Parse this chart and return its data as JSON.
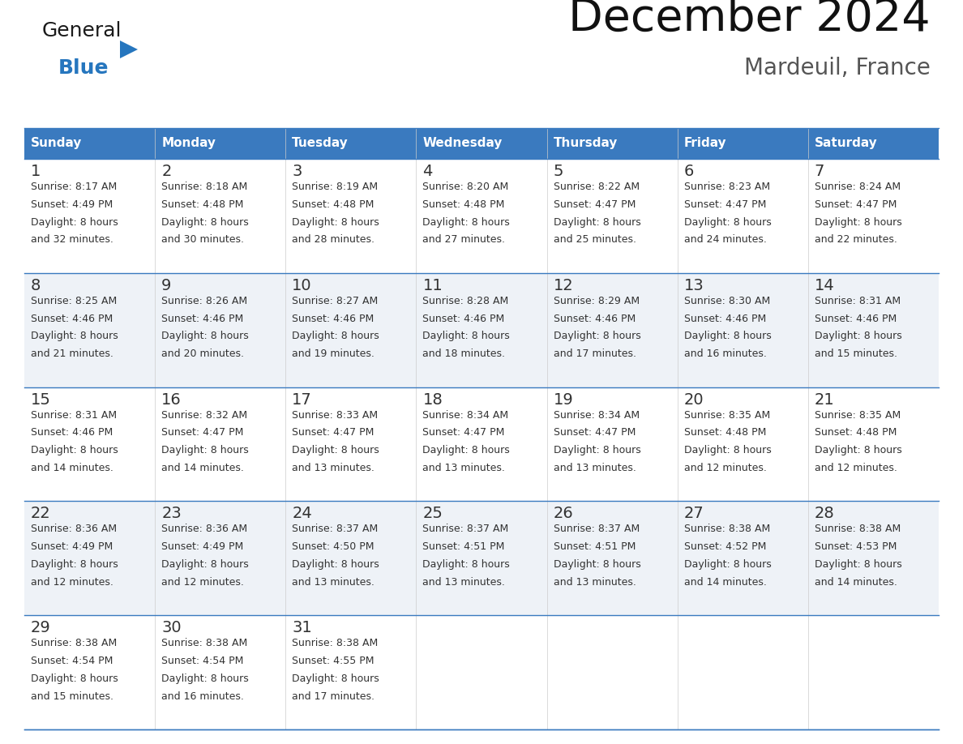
{
  "title": "December 2024",
  "subtitle": "Mardeuil, France",
  "header_color": "#3a7abf",
  "header_text_color": "#ffffff",
  "day_names": [
    "Sunday",
    "Monday",
    "Tuesday",
    "Wednesday",
    "Thursday",
    "Friday",
    "Saturday"
  ],
  "bg_color": "#ffffff",
  "row_colors": [
    "#ffffff",
    "#eef2f7",
    "#ffffff",
    "#eef2f7",
    "#ffffff"
  ],
  "border_color": "#3a7abf",
  "text_color": "#333333",
  "number_color": "#333333",
  "days": [
    {
      "day": 1,
      "col": 0,
      "row": 0,
      "sunrise": "8:17 AM",
      "sunset": "4:49 PM",
      "daylight": "8 hours",
      "daylight2": "and 32 minutes."
    },
    {
      "day": 2,
      "col": 1,
      "row": 0,
      "sunrise": "8:18 AM",
      "sunset": "4:48 PM",
      "daylight": "8 hours",
      "daylight2": "and 30 minutes."
    },
    {
      "day": 3,
      "col": 2,
      "row": 0,
      "sunrise": "8:19 AM",
      "sunset": "4:48 PM",
      "daylight": "8 hours",
      "daylight2": "and 28 minutes."
    },
    {
      "day": 4,
      "col": 3,
      "row": 0,
      "sunrise": "8:20 AM",
      "sunset": "4:48 PM",
      "daylight": "8 hours",
      "daylight2": "and 27 minutes."
    },
    {
      "day": 5,
      "col": 4,
      "row": 0,
      "sunrise": "8:22 AM",
      "sunset": "4:47 PM",
      "daylight": "8 hours",
      "daylight2": "and 25 minutes."
    },
    {
      "day": 6,
      "col": 5,
      "row": 0,
      "sunrise": "8:23 AM",
      "sunset": "4:47 PM",
      "daylight": "8 hours",
      "daylight2": "and 24 minutes."
    },
    {
      "day": 7,
      "col": 6,
      "row": 0,
      "sunrise": "8:24 AM",
      "sunset": "4:47 PM",
      "daylight": "8 hours",
      "daylight2": "and 22 minutes."
    },
    {
      "day": 8,
      "col": 0,
      "row": 1,
      "sunrise": "8:25 AM",
      "sunset": "4:46 PM",
      "daylight": "8 hours",
      "daylight2": "and 21 minutes."
    },
    {
      "day": 9,
      "col": 1,
      "row": 1,
      "sunrise": "8:26 AM",
      "sunset": "4:46 PM",
      "daylight": "8 hours",
      "daylight2": "and 20 minutes."
    },
    {
      "day": 10,
      "col": 2,
      "row": 1,
      "sunrise": "8:27 AM",
      "sunset": "4:46 PM",
      "daylight": "8 hours",
      "daylight2": "and 19 minutes."
    },
    {
      "day": 11,
      "col": 3,
      "row": 1,
      "sunrise": "8:28 AM",
      "sunset": "4:46 PM",
      "daylight": "8 hours",
      "daylight2": "and 18 minutes."
    },
    {
      "day": 12,
      "col": 4,
      "row": 1,
      "sunrise": "8:29 AM",
      "sunset": "4:46 PM",
      "daylight": "8 hours",
      "daylight2": "and 17 minutes."
    },
    {
      "day": 13,
      "col": 5,
      "row": 1,
      "sunrise": "8:30 AM",
      "sunset": "4:46 PM",
      "daylight": "8 hours",
      "daylight2": "and 16 minutes."
    },
    {
      "day": 14,
      "col": 6,
      "row": 1,
      "sunrise": "8:31 AM",
      "sunset": "4:46 PM",
      "daylight": "8 hours",
      "daylight2": "and 15 minutes."
    },
    {
      "day": 15,
      "col": 0,
      "row": 2,
      "sunrise": "8:31 AM",
      "sunset": "4:46 PM",
      "daylight": "8 hours",
      "daylight2": "and 14 minutes."
    },
    {
      "day": 16,
      "col": 1,
      "row": 2,
      "sunrise": "8:32 AM",
      "sunset": "4:47 PM",
      "daylight": "8 hours",
      "daylight2": "and 14 minutes."
    },
    {
      "day": 17,
      "col": 2,
      "row": 2,
      "sunrise": "8:33 AM",
      "sunset": "4:47 PM",
      "daylight": "8 hours",
      "daylight2": "and 13 minutes."
    },
    {
      "day": 18,
      "col": 3,
      "row": 2,
      "sunrise": "8:34 AM",
      "sunset": "4:47 PM",
      "daylight": "8 hours",
      "daylight2": "and 13 minutes."
    },
    {
      "day": 19,
      "col": 4,
      "row": 2,
      "sunrise": "8:34 AM",
      "sunset": "4:47 PM",
      "daylight": "8 hours",
      "daylight2": "and 13 minutes."
    },
    {
      "day": 20,
      "col": 5,
      "row": 2,
      "sunrise": "8:35 AM",
      "sunset": "4:48 PM",
      "daylight": "8 hours",
      "daylight2": "and 12 minutes."
    },
    {
      "day": 21,
      "col": 6,
      "row": 2,
      "sunrise": "8:35 AM",
      "sunset": "4:48 PM",
      "daylight": "8 hours",
      "daylight2": "and 12 minutes."
    },
    {
      "day": 22,
      "col": 0,
      "row": 3,
      "sunrise": "8:36 AM",
      "sunset": "4:49 PM",
      "daylight": "8 hours",
      "daylight2": "and 12 minutes."
    },
    {
      "day": 23,
      "col": 1,
      "row": 3,
      "sunrise": "8:36 AM",
      "sunset": "4:49 PM",
      "daylight": "8 hours",
      "daylight2": "and 12 minutes."
    },
    {
      "day": 24,
      "col": 2,
      "row": 3,
      "sunrise": "8:37 AM",
      "sunset": "4:50 PM",
      "daylight": "8 hours",
      "daylight2": "and 13 minutes."
    },
    {
      "day": 25,
      "col": 3,
      "row": 3,
      "sunrise": "8:37 AM",
      "sunset": "4:51 PM",
      "daylight": "8 hours",
      "daylight2": "and 13 minutes."
    },
    {
      "day": 26,
      "col": 4,
      "row": 3,
      "sunrise": "8:37 AM",
      "sunset": "4:51 PM",
      "daylight": "8 hours",
      "daylight2": "and 13 minutes."
    },
    {
      "day": 27,
      "col": 5,
      "row": 3,
      "sunrise": "8:38 AM",
      "sunset": "4:52 PM",
      "daylight": "8 hours",
      "daylight2": "and 14 minutes."
    },
    {
      "day": 28,
      "col": 6,
      "row": 3,
      "sunrise": "8:38 AM",
      "sunset": "4:53 PM",
      "daylight": "8 hours",
      "daylight2": "and 14 minutes."
    },
    {
      "day": 29,
      "col": 0,
      "row": 4,
      "sunrise": "8:38 AM",
      "sunset": "4:54 PM",
      "daylight": "8 hours",
      "daylight2": "and 15 minutes."
    },
    {
      "day": 30,
      "col": 1,
      "row": 4,
      "sunrise": "8:38 AM",
      "sunset": "4:54 PM",
      "daylight": "8 hours",
      "daylight2": "and 16 minutes."
    },
    {
      "day": 31,
      "col": 2,
      "row": 4,
      "sunrise": "8:38 AM",
      "sunset": "4:55 PM",
      "daylight": "8 hours",
      "daylight2": "and 17 minutes."
    }
  ],
  "logo_color_general": "#1a1a1a",
  "logo_color_blue": "#2676be",
  "logo_triangle_color": "#2676be",
  "title_fontsize": 40,
  "subtitle_fontsize": 20,
  "header_fontsize": 11,
  "day_num_fontsize": 14,
  "cell_fontsize": 9
}
